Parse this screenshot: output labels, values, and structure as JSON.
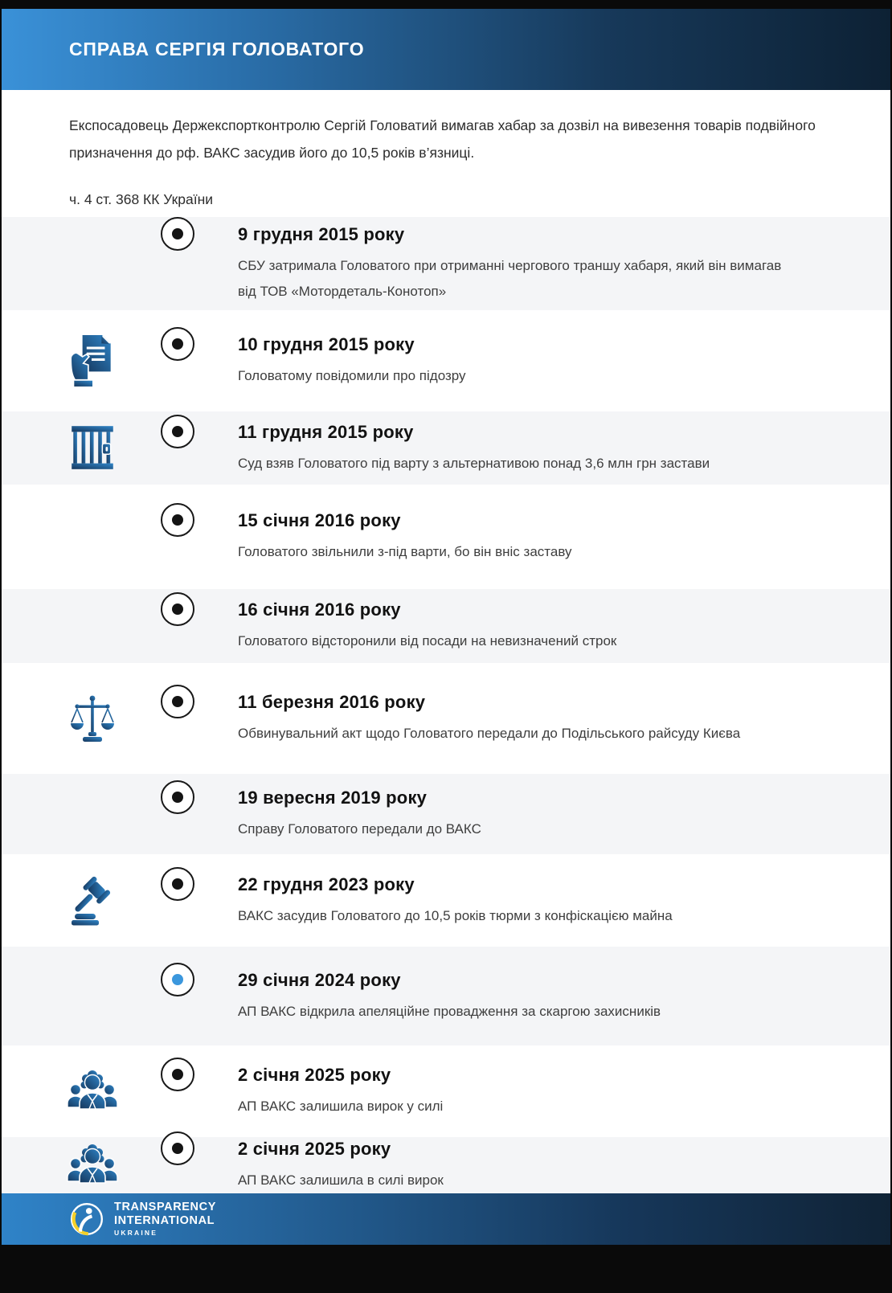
{
  "page": {
    "title": "СПРАВА СЕРГІЯ ГОЛОВАТОГО",
    "intro": "Експосадовець Держекспортконтролю Сергій Головатий вимагав хабар за дозвіл на вивезення товарів подвійного призначення до рф. ВАКС засудив його до 10,5 років в’язниці.",
    "law_reference": "ч. 4 ст. 368 КК України"
  },
  "colors": {
    "accent_blue": "#3b97dd",
    "header_gradient_start": "#3a91d8",
    "header_gradient_end": "#0d2134",
    "row_alt_bg": "#f4f5f7",
    "icon_gradient_dark": "#16375c",
    "icon_gradient_light": "#2f85c8",
    "dot_black": "#141414",
    "logo_yellow": "#f5d028"
  },
  "timeline": {
    "items": [
      {
        "date": "9 грудня 2015 року",
        "description": "СБУ затримала Головатого при отриманні чергового траншу хабаря, який він вимагав від ТОВ «Мотордеталь-Конотоп»",
        "icon": null,
        "dot": "black"
      },
      {
        "date": "10 грудня 2015 року",
        "description": "Головатому повідомили про підозру",
        "icon": "hand-document-icon",
        "dot": "black"
      },
      {
        "date": "11 грудня 2015 року",
        "description": "Суд взяв Головатого під варту з альтернативою понад 3,6 млн грн застави",
        "icon": "prison-bars-icon",
        "dot": "black"
      },
      {
        "date": "15 січня 2016 року",
        "description": "Головатого звільнили з-під варти, бо він вніс заставу",
        "icon": null,
        "dot": "black"
      },
      {
        "date": "16 січня 2016 року",
        "description": "Головатого відсторонили від посади на невизначений строк",
        "icon": null,
        "dot": "black"
      },
      {
        "date": "11 березня 2016 року",
        "description": "Обвинувальний акт щодо Головатого передали до Подільського райсуду Києва",
        "icon": "scales-icon",
        "dot": "black"
      },
      {
        "date": "19 вересня 2019 року",
        "description": "Справу Головатого передали до ВАКС",
        "icon": null,
        "dot": "black"
      },
      {
        "date": "22 грудня 2023 року",
        "description": "ВАКС засудив Головатого до 10,5 років тюрми з конфіскацією майна",
        "icon": "gavel-icon",
        "dot": "black"
      },
      {
        "date": "29 січня 2024 року",
        "description": "АП ВАКС відкрила апеляційне провадження за скаргою захисників",
        "icon": null,
        "dot": "blue"
      },
      {
        "date": "2 січня 2025 року",
        "description": "АП ВАКС залишила вирок у силі",
        "icon": "judges-icon",
        "dot": "black"
      },
      {
        "date": "2 січня 2025 року",
        "description": "АП ВАКС залишила в силі вирок",
        "icon": "judges-icon",
        "dot": "black"
      }
    ]
  },
  "footer": {
    "logo_icon": "transparency-international-logo",
    "org_line1": "TRANSPARENCY",
    "org_line2": "INTERNATIONAL",
    "country": "UKRAINE"
  }
}
